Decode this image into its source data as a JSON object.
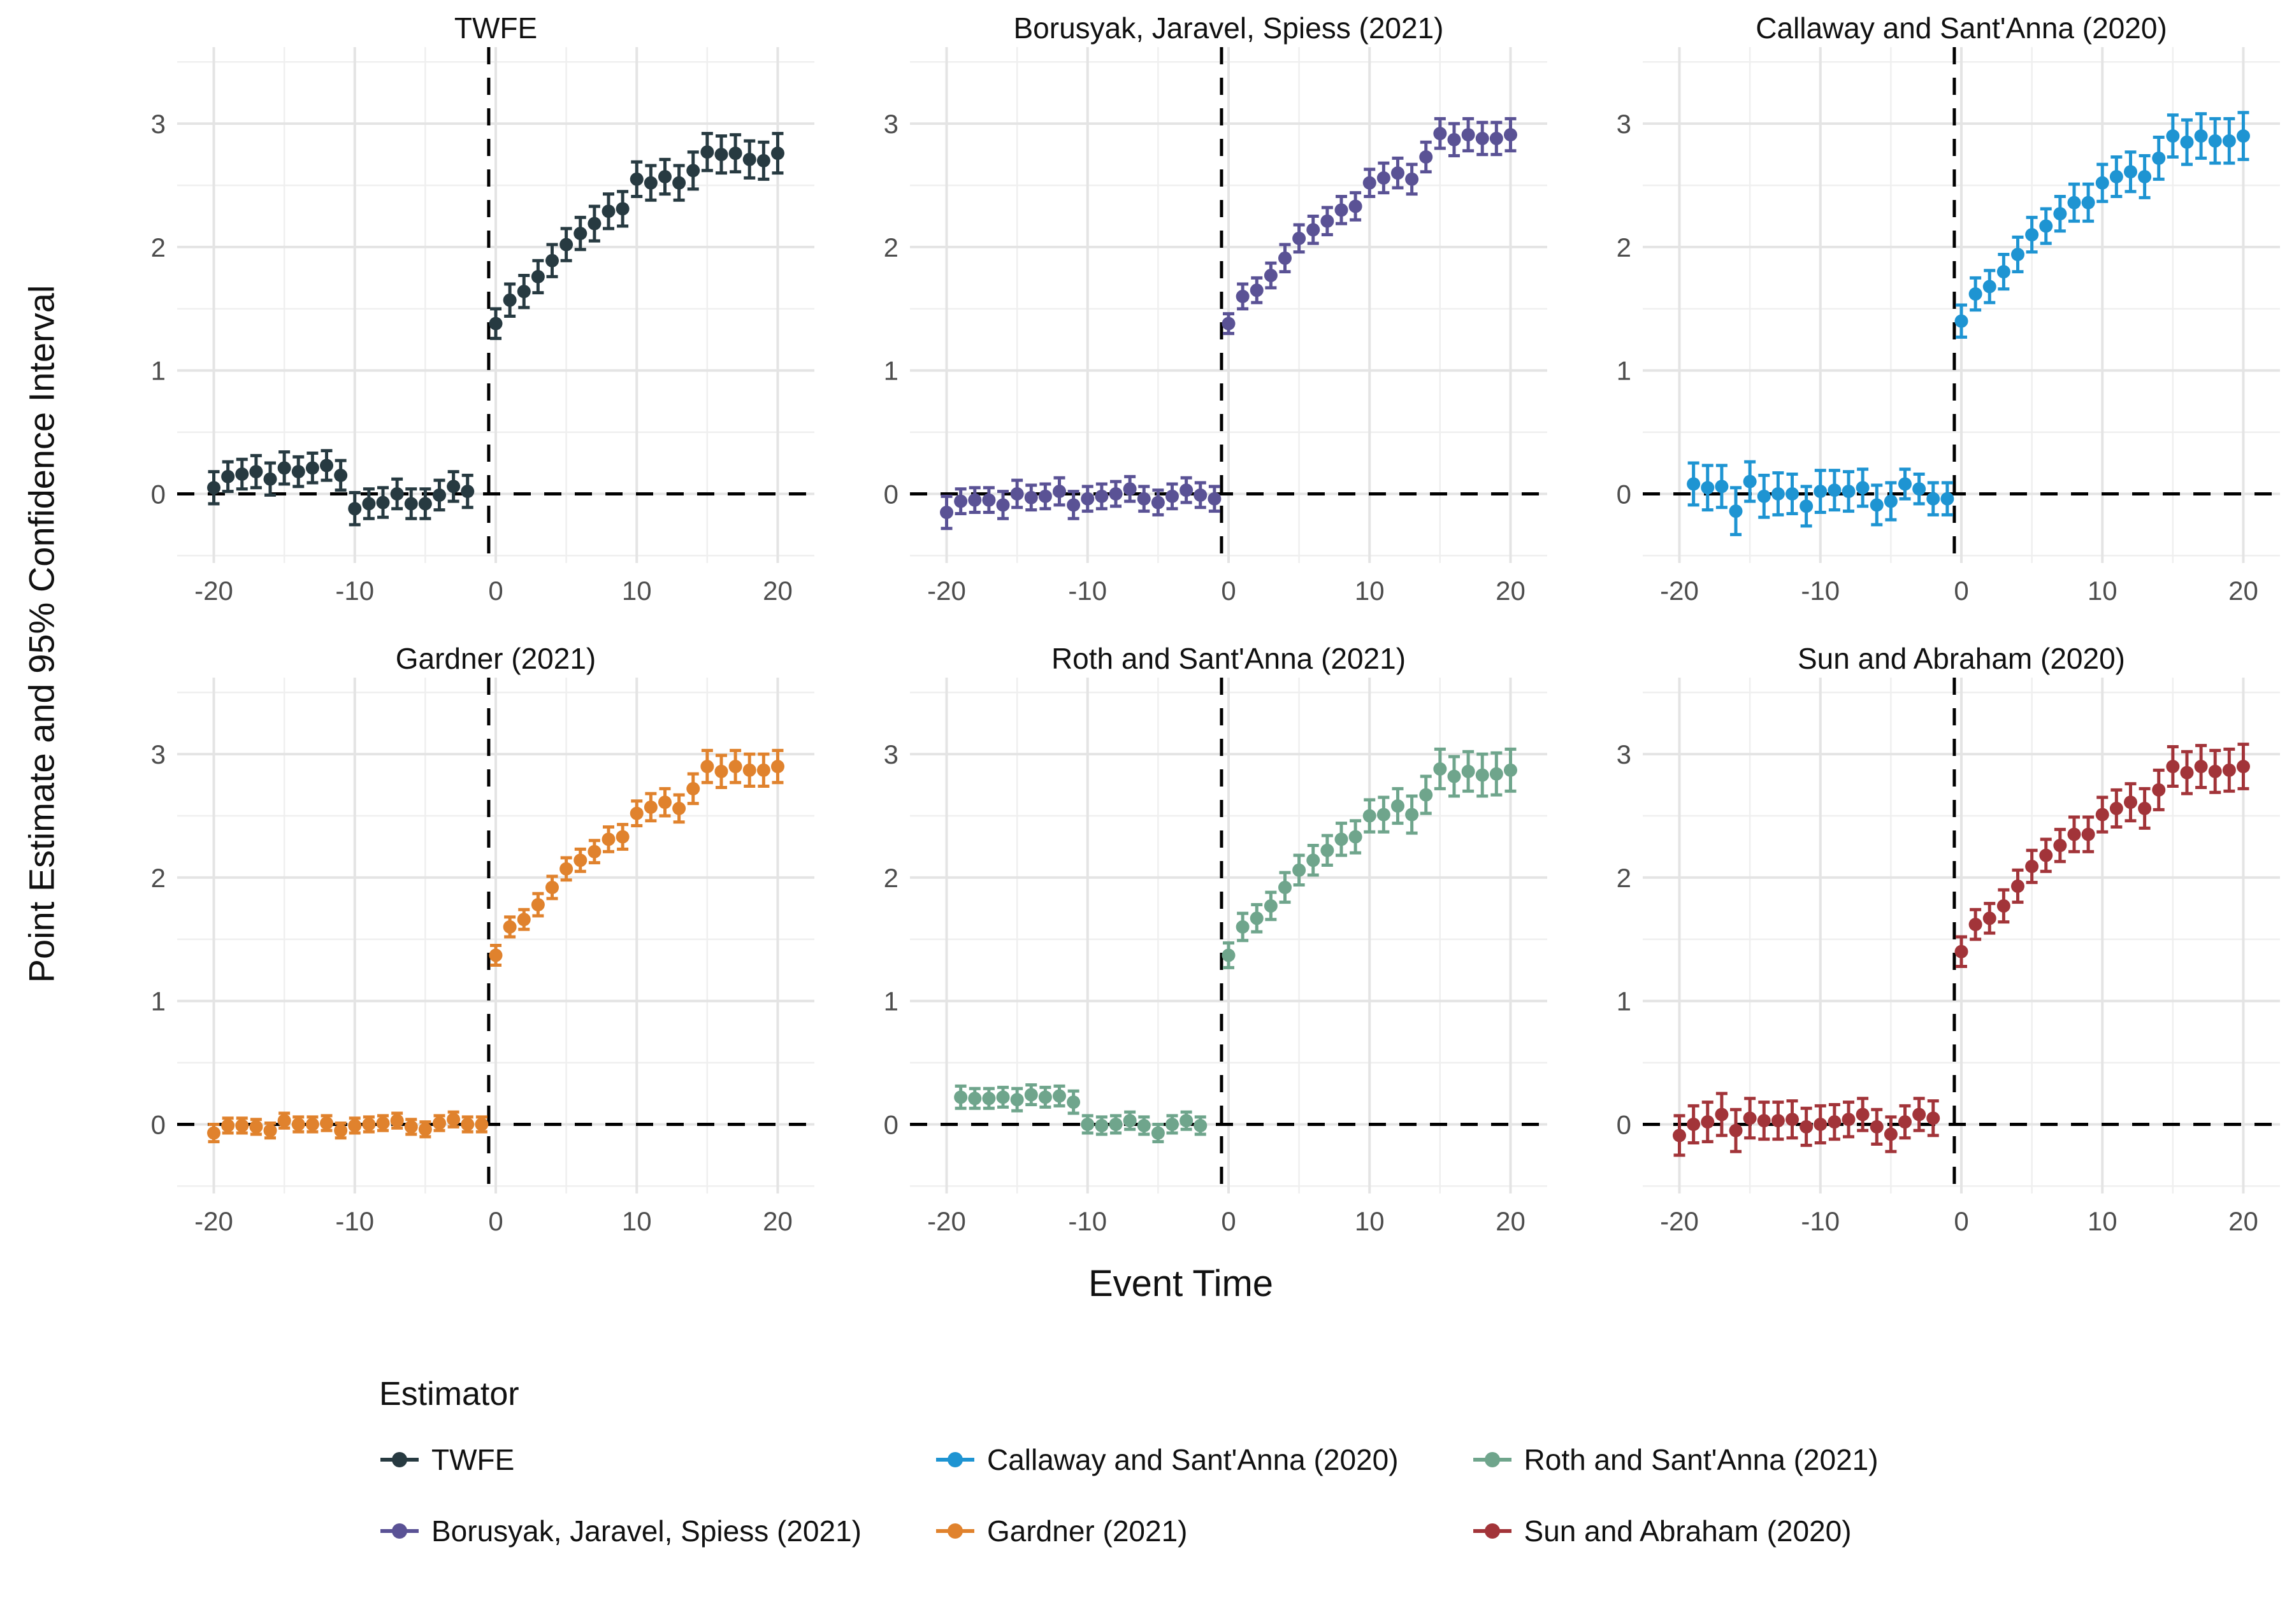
{
  "figure": {
    "x_axis_title": "Event Time",
    "y_axis_title": "Point Estimate and 95% Confidence Interval"
  },
  "chart_data": {
    "type": "scatter",
    "subtype": "pointrange-event-study",
    "xlabel": "Event Time",
    "ylabel": "Point Estimate and 95% Confidence Interval",
    "legend_title": "Estimator",
    "legend_position": "bottom-left",
    "grid": true,
    "axes": {
      "xlim": [
        -22.6,
        22.6
      ],
      "ylim": [
        -0.56,
        3.62
      ],
      "x_ticks": [
        -20,
        -10,
        0,
        10,
        20
      ],
      "x_minor": [
        -15,
        -5,
        5,
        15
      ],
      "y_ticks": [
        0,
        1,
        2,
        3
      ],
      "y_minor": [
        -0.5,
        0.5,
        1.5,
        2.5,
        3.5
      ]
    },
    "reference_lines": {
      "vline_x": -0.5,
      "hline_y": 0,
      "style": "dashed",
      "color": "#000000"
    },
    "panels": [
      {
        "title": "TWFE",
        "color": "#273a41",
        "t": [
          -20,
          -19,
          -18,
          -17,
          -16,
          -15,
          -14,
          -13,
          -12,
          -11,
          -10,
          -9,
          -8,
          -7,
          -6,
          -5,
          -4,
          -3,
          -2,
          0,
          1,
          2,
          3,
          4,
          5,
          6,
          7,
          8,
          9,
          10,
          11,
          12,
          13,
          14,
          15,
          16,
          17,
          18,
          19,
          20
        ],
        "estimate": [
          0.05,
          0.14,
          0.16,
          0.18,
          0.12,
          0.21,
          0.18,
          0.21,
          0.23,
          0.15,
          -0.12,
          -0.08,
          -0.07,
          0.0,
          -0.08,
          -0.08,
          -0.01,
          0.06,
          0.02,
          1.38,
          1.57,
          1.64,
          1.76,
          1.89,
          2.02,
          2.11,
          2.19,
          2.29,
          2.31,
          2.55,
          2.52,
          2.57,
          2.52,
          2.62,
          2.77,
          2.75,
          2.76,
          2.71,
          2.7,
          2.76
        ],
        "ci": [
          0.13,
          0.12,
          0.12,
          0.13,
          0.13,
          0.13,
          0.12,
          0.12,
          0.12,
          0.12,
          0.13,
          0.12,
          0.12,
          0.12,
          0.12,
          0.12,
          0.12,
          0.12,
          0.13,
          0.12,
          0.13,
          0.13,
          0.13,
          0.13,
          0.13,
          0.13,
          0.14,
          0.14,
          0.14,
          0.14,
          0.14,
          0.14,
          0.14,
          0.15,
          0.15,
          0.15,
          0.15,
          0.15,
          0.15,
          0.16
        ]
      },
      {
        "title": "Borusyak, Jaravel, Spiess (2021)",
        "color": "#5a5295",
        "t": [
          -20,
          -19,
          -18,
          -17,
          -16,
          -15,
          -14,
          -13,
          -12,
          -11,
          -10,
          -9,
          -8,
          -7,
          -6,
          -5,
          -4,
          -3,
          -2,
          -1,
          0,
          1,
          2,
          3,
          4,
          5,
          6,
          7,
          8,
          9,
          10,
          11,
          12,
          13,
          14,
          15,
          16,
          17,
          18,
          19,
          20
        ],
        "estimate": [
          -0.15,
          -0.06,
          -0.05,
          -0.05,
          -0.09,
          0.0,
          -0.03,
          -0.02,
          0.02,
          -0.09,
          -0.04,
          -0.02,
          0.0,
          0.04,
          -0.04,
          -0.07,
          -0.02,
          0.03,
          -0.01,
          -0.04,
          1.38,
          1.6,
          1.65,
          1.77,
          1.91,
          2.07,
          2.14,
          2.21,
          2.3,
          2.33,
          2.52,
          2.56,
          2.6,
          2.55,
          2.73,
          2.92,
          2.87,
          2.91,
          2.88,
          2.88,
          2.91
        ],
        "ci": [
          0.13,
          0.1,
          0.1,
          0.1,
          0.11,
          0.11,
          0.1,
          0.1,
          0.11,
          0.11,
          0.1,
          0.1,
          0.1,
          0.1,
          0.1,
          0.1,
          0.1,
          0.1,
          0.1,
          0.1,
          0.08,
          0.1,
          0.1,
          0.1,
          0.11,
          0.11,
          0.11,
          0.11,
          0.11,
          0.11,
          0.11,
          0.12,
          0.12,
          0.12,
          0.12,
          0.12,
          0.13,
          0.13,
          0.13,
          0.13,
          0.13
        ]
      },
      {
        "title": "Callaway and Sant'Anna (2020)",
        "color": "#1e94d2",
        "t": [
          -19,
          -18,
          -17,
          -16,
          -15,
          -14,
          -13,
          -12,
          -11,
          -10,
          -9,
          -8,
          -7,
          -6,
          -5,
          -4,
          -3,
          -2,
          -1,
          0,
          1,
          2,
          3,
          4,
          5,
          6,
          7,
          8,
          9,
          10,
          11,
          12,
          13,
          14,
          15,
          16,
          17,
          18,
          19,
          20
        ],
        "estimate": [
          0.08,
          0.05,
          0.06,
          -0.14,
          0.1,
          -0.02,
          0.0,
          0.0,
          -0.1,
          0.02,
          0.03,
          0.02,
          0.05,
          -0.09,
          -0.06,
          0.08,
          0.04,
          -0.04,
          -0.04,
          1.4,
          1.62,
          1.68,
          1.8,
          1.94,
          2.1,
          2.17,
          2.27,
          2.36,
          2.36,
          2.52,
          2.57,
          2.61,
          2.57,
          2.72,
          2.9,
          2.85,
          2.9,
          2.86,
          2.86,
          2.9
        ],
        "ci": [
          0.17,
          0.18,
          0.17,
          0.19,
          0.16,
          0.17,
          0.17,
          0.16,
          0.16,
          0.17,
          0.16,
          0.16,
          0.15,
          0.16,
          0.15,
          0.12,
          0.12,
          0.13,
          0.13,
          0.13,
          0.13,
          0.13,
          0.14,
          0.14,
          0.14,
          0.14,
          0.14,
          0.15,
          0.15,
          0.15,
          0.16,
          0.16,
          0.17,
          0.17,
          0.17,
          0.18,
          0.18,
          0.18,
          0.18,
          0.19
        ]
      },
      {
        "title": "Gardner (2021)",
        "color": "#e0822d",
        "t": [
          -20,
          -19,
          -18,
          -17,
          -16,
          -15,
          -14,
          -13,
          -12,
          -11,
          -10,
          -9,
          -8,
          -7,
          -6,
          -5,
          -4,
          -3,
          -2,
          -1,
          0,
          1,
          2,
          3,
          4,
          5,
          6,
          7,
          8,
          9,
          10,
          11,
          12,
          13,
          14,
          15,
          16,
          17,
          18,
          19,
          20
        ],
        "estimate": [
          -0.07,
          -0.01,
          -0.01,
          -0.02,
          -0.05,
          0.03,
          0.0,
          0.0,
          0.01,
          -0.05,
          -0.01,
          0.0,
          0.01,
          0.03,
          -0.02,
          -0.04,
          0.01,
          0.04,
          0.0,
          0.0,
          1.37,
          1.6,
          1.66,
          1.78,
          1.92,
          2.07,
          2.14,
          2.21,
          2.31,
          2.33,
          2.52,
          2.57,
          2.61,
          2.56,
          2.72,
          2.9,
          2.86,
          2.9,
          2.87,
          2.87,
          2.9
        ],
        "ci": [
          0.07,
          0.06,
          0.06,
          0.06,
          0.06,
          0.06,
          0.06,
          0.06,
          0.06,
          0.06,
          0.06,
          0.06,
          0.06,
          0.06,
          0.06,
          0.06,
          0.06,
          0.06,
          0.06,
          0.06,
          0.08,
          0.08,
          0.08,
          0.09,
          0.09,
          0.09,
          0.09,
          0.09,
          0.1,
          0.1,
          0.1,
          0.11,
          0.11,
          0.11,
          0.12,
          0.13,
          0.13,
          0.13,
          0.13,
          0.13,
          0.13
        ]
      },
      {
        "title": "Roth and Sant'Anna (2021)",
        "color": "#6fa58c",
        "t": [
          -19,
          -18,
          -17,
          -16,
          -15,
          -14,
          -13,
          -12,
          -11,
          -10,
          -9,
          -8,
          -7,
          -6,
          -5,
          -4,
          -3,
          -2,
          0,
          1,
          2,
          3,
          4,
          5,
          6,
          7,
          8,
          9,
          10,
          11,
          12,
          13,
          14,
          15,
          16,
          17,
          18,
          19,
          20
        ],
        "estimate": [
          0.22,
          0.21,
          0.21,
          0.22,
          0.2,
          0.24,
          0.22,
          0.23,
          0.18,
          0.0,
          -0.01,
          0.0,
          0.03,
          -0.01,
          -0.07,
          0.0,
          0.03,
          -0.01,
          1.37,
          1.6,
          1.67,
          1.77,
          1.92,
          2.06,
          2.14,
          2.22,
          2.31,
          2.33,
          2.5,
          2.51,
          2.58,
          2.51,
          2.67,
          2.88,
          2.82,
          2.86,
          2.83,
          2.84,
          2.87
        ],
        "ci": [
          0.09,
          0.08,
          0.08,
          0.08,
          0.09,
          0.08,
          0.08,
          0.08,
          0.09,
          0.07,
          0.07,
          0.07,
          0.07,
          0.07,
          0.07,
          0.07,
          0.07,
          0.07,
          0.1,
          0.11,
          0.11,
          0.11,
          0.12,
          0.12,
          0.12,
          0.12,
          0.13,
          0.13,
          0.13,
          0.14,
          0.14,
          0.15,
          0.15,
          0.16,
          0.16,
          0.16,
          0.17,
          0.17,
          0.17
        ]
      },
      {
        "title": "Sun and Abraham (2020)",
        "color": "#a23439",
        "t": [
          -20,
          -19,
          -18,
          -17,
          -16,
          -15,
          -14,
          -13,
          -12,
          -11,
          -10,
          -9,
          -8,
          -7,
          -6,
          -5,
          -4,
          -3,
          -2,
          0,
          1,
          2,
          3,
          4,
          5,
          6,
          7,
          8,
          9,
          10,
          11,
          12,
          13,
          14,
          15,
          16,
          17,
          18,
          19,
          20
        ],
        "estimate": [
          -0.09,
          0.0,
          0.02,
          0.08,
          -0.05,
          0.05,
          0.03,
          0.03,
          0.04,
          -0.02,
          0.0,
          0.02,
          0.04,
          0.08,
          -0.02,
          -0.08,
          0.02,
          0.08,
          0.05,
          1.4,
          1.62,
          1.67,
          1.77,
          1.93,
          2.09,
          2.18,
          2.26,
          2.35,
          2.35,
          2.51,
          2.56,
          2.61,
          2.56,
          2.71,
          2.9,
          2.85,
          2.9,
          2.86,
          2.87,
          2.9
        ],
        "ci": [
          0.16,
          0.15,
          0.16,
          0.17,
          0.17,
          0.16,
          0.15,
          0.15,
          0.15,
          0.15,
          0.15,
          0.14,
          0.14,
          0.13,
          0.14,
          0.14,
          0.13,
          0.13,
          0.14,
          0.12,
          0.12,
          0.12,
          0.13,
          0.13,
          0.13,
          0.13,
          0.13,
          0.14,
          0.14,
          0.14,
          0.15,
          0.15,
          0.16,
          0.16,
          0.16,
          0.17,
          0.17,
          0.17,
          0.17,
          0.18
        ]
      }
    ]
  }
}
